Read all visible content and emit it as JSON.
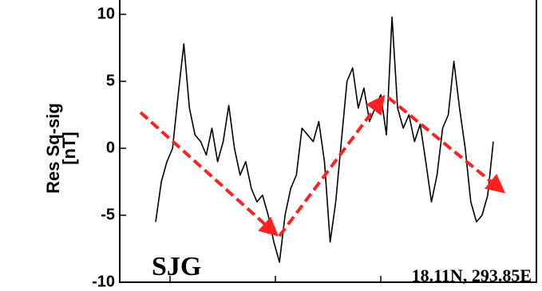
{
  "chart_data": {
    "type": "line",
    "ylabel": [
      "Res Sq-sig",
      "[nT]"
    ],
    "annotations": [
      "SJG",
      "18.11N, 293.85E"
    ],
    "categories": [
      null,
      null,
      null,
      null,
      null,
      null,
      null,
      null,
      null,
      null,
      null,
      null,
      null,
      null,
      null,
      null,
      null,
      null,
      null,
      null,
      null,
      null,
      null,
      null,
      null,
      null,
      null,
      null,
      null,
      null,
      null,
      null,
      null,
      null,
      null,
      null,
      null,
      null,
      null,
      null,
      null,
      null,
      null,
      null,
      null,
      null,
      null,
      null,
      null,
      null,
      null,
      null,
      null,
      null,
      null,
      null,
      null,
      null,
      null,
      null,
      null
    ],
    "series": [
      {
        "color": "#000000",
        "values": [
          -5.5,
          -2.5,
          -1,
          0,
          4,
          7.8,
          3,
          1,
          0.5,
          -0.5,
          1.5,
          -1,
          0.5,
          3.2,
          0,
          -2,
          -1,
          -3,
          -4,
          -3.5,
          -5,
          -7,
          -8.5,
          -5,
          -3,
          -2,
          1.5,
          1,
          0.5,
          2,
          -1,
          -7,
          -4,
          0.5,
          5,
          6,
          3,
          4.5,
          2,
          3,
          4,
          1,
          9.8,
          3,
          1.5,
          2.5,
          0.5,
          1.8,
          -1,
          -4,
          -2,
          1.5,
          2.5,
          6.5,
          3,
          0,
          -4,
          -5.5,
          -5,
          -3.5,
          0.5
        ]
      }
    ],
    "ylim": [
      -10,
      10
    ],
    "yticks": [
      -10,
      -5,
      0,
      5,
      10
    ]
  }
}
